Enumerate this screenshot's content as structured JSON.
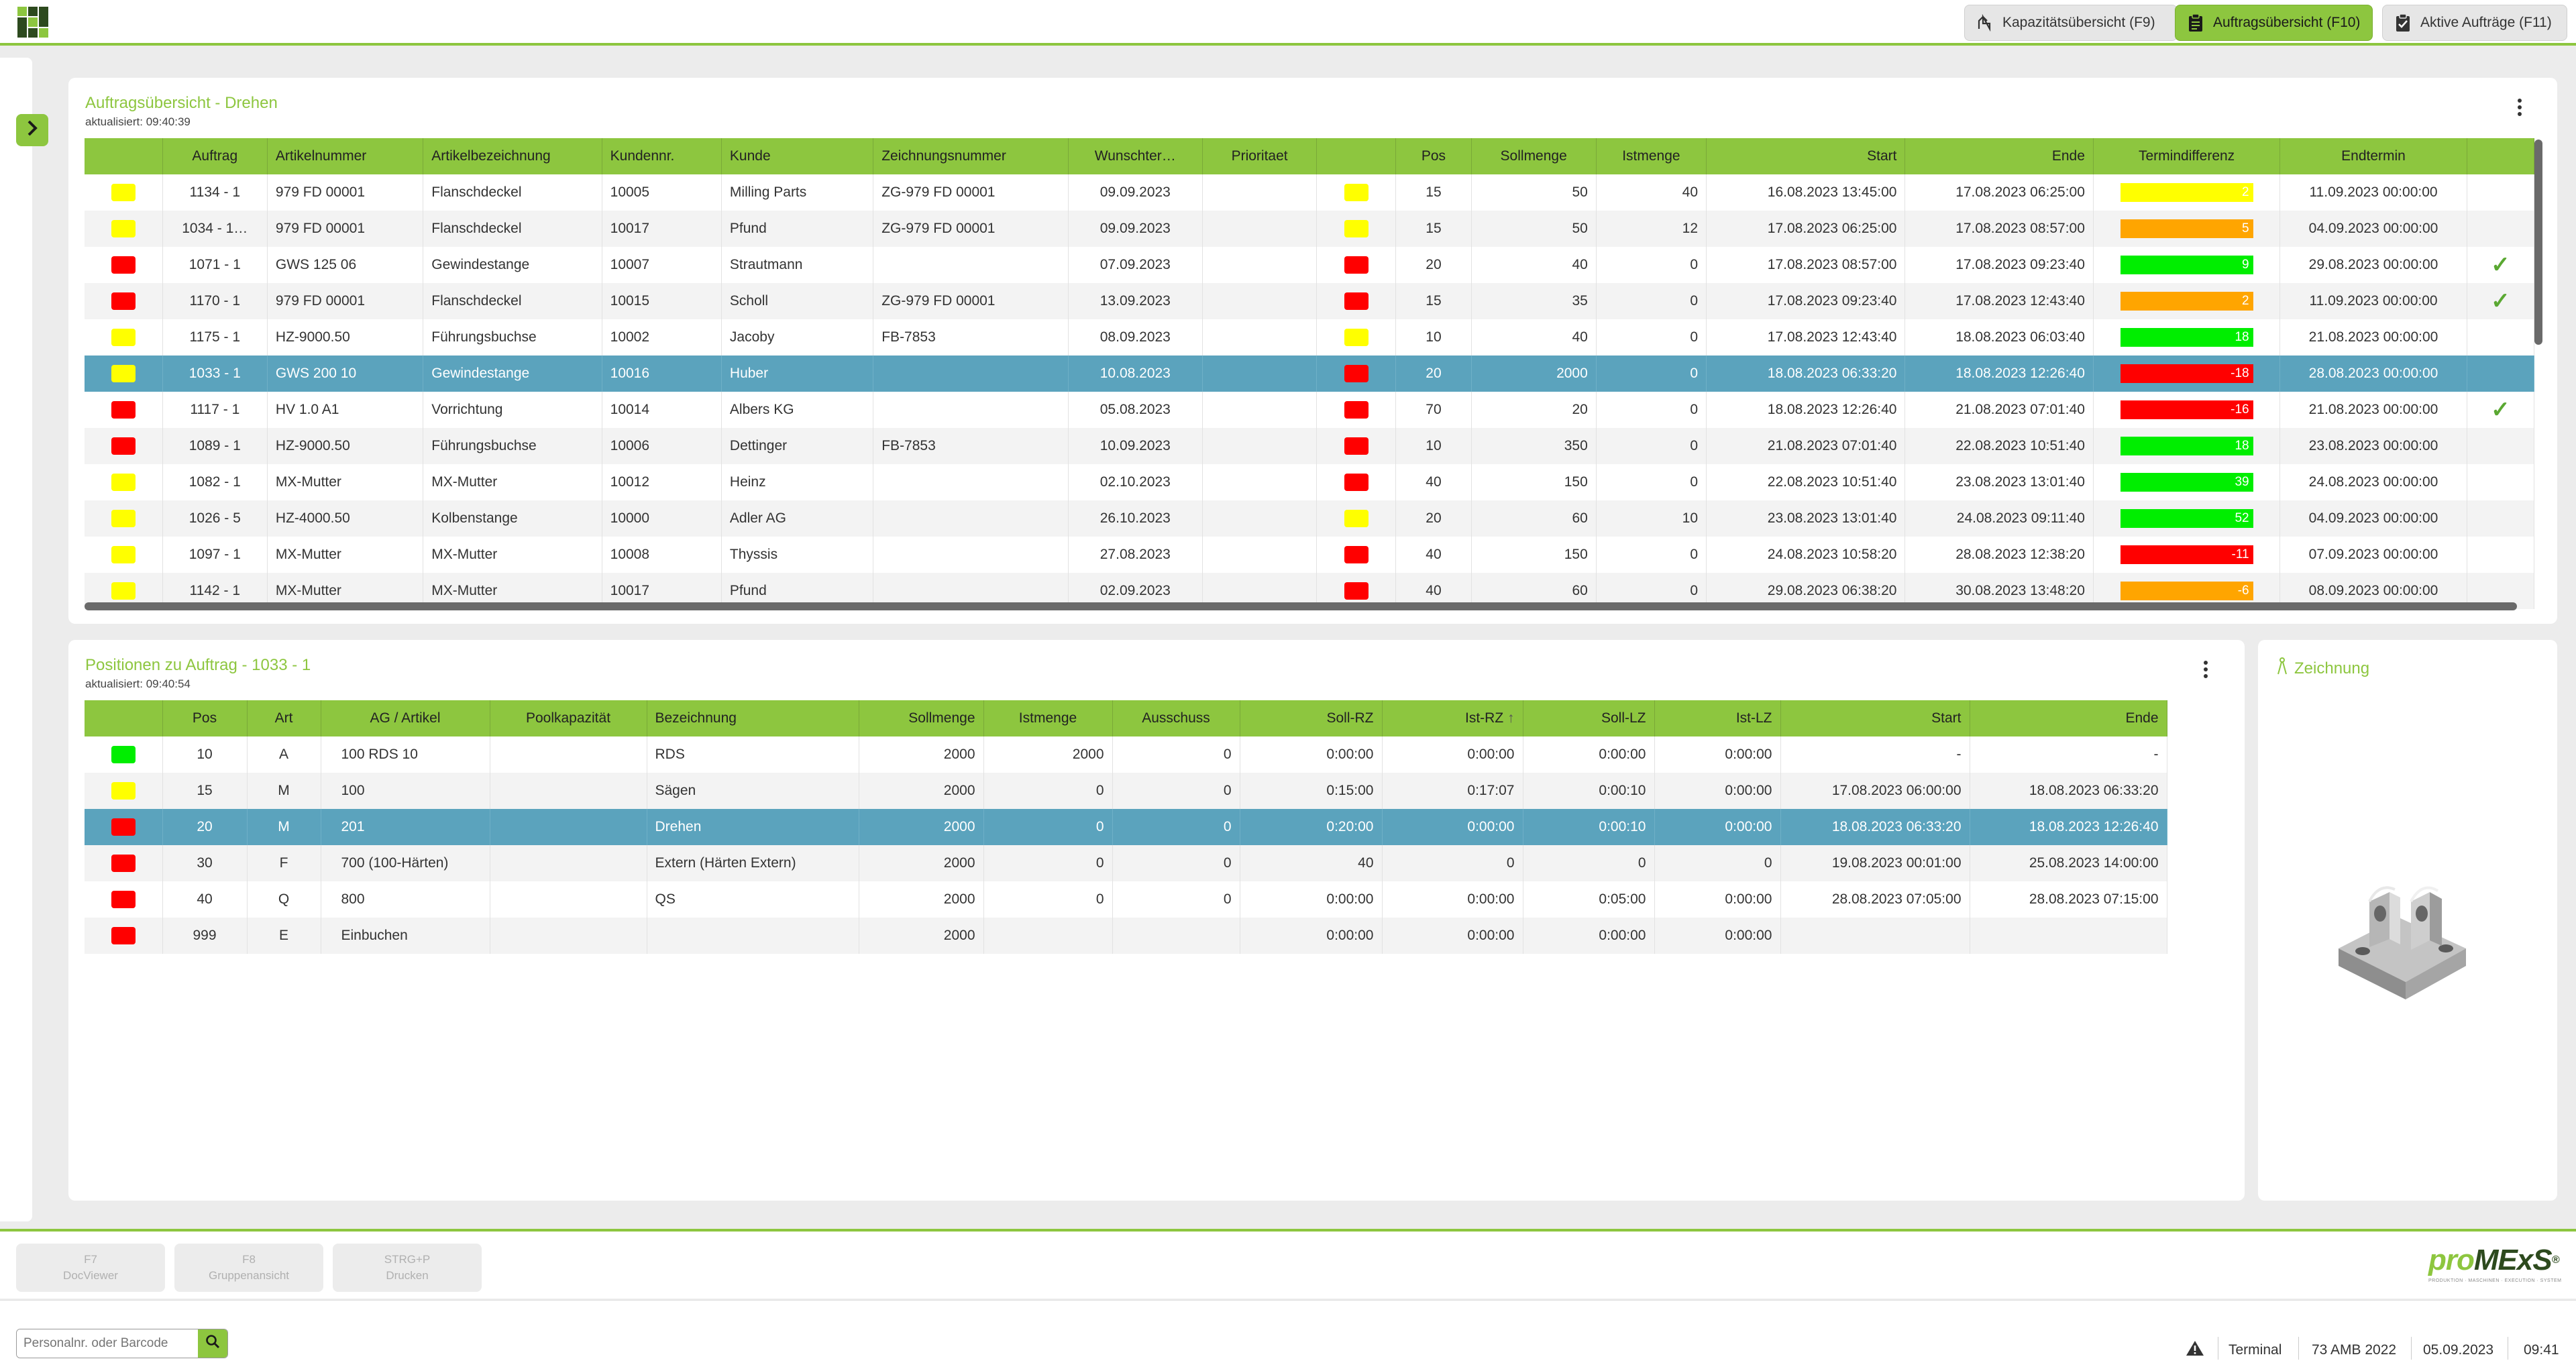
{
  "header": {
    "buttons": [
      {
        "label": "Kapazitätsübersicht (F9)",
        "icon": "capacity-gauge-icon"
      },
      {
        "label": "Auftragsübersicht (F10)",
        "icon": "clipboard-icon",
        "active": true
      },
      {
        "label": "Aktive Aufträge (F11)",
        "icon": "checked-clipboard-icon"
      }
    ]
  },
  "orders": {
    "title": "Auftragsübersicht - Drehen",
    "updated": "aktualisiert: 09:40:39",
    "columns": [
      "",
      "Auftrag",
      "Artikelnummer",
      "Artikelbezeichnung",
      "Kundennr.",
      "Kunde",
      "Zeichnungsnummer",
      "Wunschter…",
      "Prioritaet",
      "",
      "Pos",
      "Sollmenge",
      "Istmenge",
      "Start",
      "Ende",
      "Termindifferenz",
      "Endtermin",
      ""
    ],
    "rows": [
      {
        "s1": "yellow",
        "auftrag": "1134 - 1",
        "artnr": "979 FD 00001",
        "artbez": "Flanschdeckel",
        "kdnr": "10005",
        "kunde": "Milling Parts",
        "zeich": "ZG-979 FD 00001",
        "wunsch": "09.09.2023",
        "prio": "",
        "s2": "yellow",
        "pos": "15",
        "soll": "50",
        "ist": "40",
        "start": "16.08.2023 13:45:00",
        "ende": "17.08.2023 06:25:00",
        "diff": "2",
        "dc": "yellow",
        "endt": "11.09.2023 00:00:00",
        "ok": false
      },
      {
        "s1": "yellow",
        "auftrag": "1034 - 1…",
        "artnr": "979 FD 00001",
        "artbez": "Flanschdeckel",
        "kdnr": "10017",
        "kunde": "Pfund",
        "zeich": "ZG-979 FD 00001",
        "wunsch": "09.09.2023",
        "prio": "",
        "s2": "yellow",
        "pos": "15",
        "soll": "50",
        "ist": "12",
        "start": "17.08.2023 06:25:00",
        "ende": "17.08.2023 08:57:00",
        "diff": "5",
        "dc": "orange",
        "endt": "04.09.2023 00:00:00",
        "ok": false
      },
      {
        "s1": "red",
        "auftrag": "1071 - 1",
        "artnr": "GWS 125 06",
        "artbez": "Gewindestange",
        "kdnr": "10007",
        "kunde": "Strautmann",
        "zeich": "",
        "wunsch": "07.09.2023",
        "prio": "",
        "s2": "red",
        "pos": "20",
        "soll": "40",
        "ist": "0",
        "start": "17.08.2023 08:57:00",
        "ende": "17.08.2023 09:23:40",
        "diff": "9",
        "dc": "green",
        "endt": "29.08.2023 00:00:00",
        "ok": true
      },
      {
        "s1": "red",
        "auftrag": "1170 - 1",
        "artnr": "979 FD 00001",
        "artbez": "Flanschdeckel",
        "kdnr": "10015",
        "kunde": "Scholl",
        "zeich": "ZG-979 FD 00001",
        "wunsch": "13.09.2023",
        "prio": "",
        "s2": "red",
        "pos": "15",
        "soll": "35",
        "ist": "0",
        "start": "17.08.2023 09:23:40",
        "ende": "17.08.2023 12:43:40",
        "diff": "2",
        "dc": "orange",
        "endt": "11.09.2023 00:00:00",
        "ok": true
      },
      {
        "s1": "yellow",
        "auftrag": "1175 - 1",
        "artnr": "HZ-9000.50",
        "artbez": "Führungsbuchse",
        "kdnr": "10002",
        "kunde": "Jacoby",
        "zeich": "FB-7853",
        "wunsch": "08.09.2023",
        "prio": "",
        "s2": "yellow",
        "pos": "10",
        "soll": "40",
        "ist": "0",
        "start": "17.08.2023 12:43:40",
        "ende": "18.08.2023 06:03:40",
        "diff": "18",
        "dc": "green",
        "endt": "21.08.2023 00:00:00",
        "ok": false
      },
      {
        "s1": "yellow",
        "auftrag": "1033 - 1",
        "artnr": "GWS 200 10",
        "artbez": "Gewindestange",
        "kdnr": "10016",
        "kunde": "Huber",
        "zeich": "",
        "wunsch": "10.08.2023",
        "prio": "",
        "s2": "red",
        "pos": "20",
        "soll": "2000",
        "ist": "0",
        "start": "18.08.2023 06:33:20",
        "ende": "18.08.2023 12:26:40",
        "diff": "-18",
        "dc": "red",
        "endt": "28.08.2023 00:00:00",
        "ok": false,
        "selected": true
      },
      {
        "s1": "red",
        "auftrag": "1117 - 1",
        "artnr": "HV 1.0 A1",
        "artbez": "Vorrichtung",
        "kdnr": "10014",
        "kunde": "Albers KG",
        "zeich": "",
        "wunsch": "05.08.2023",
        "prio": "",
        "s2": "red",
        "pos": "70",
        "soll": "20",
        "ist": "0",
        "start": "18.08.2023 12:26:40",
        "ende": "21.08.2023 07:01:40",
        "diff": "-16",
        "dc": "red",
        "endt": "21.08.2023 00:00:00",
        "ok": true
      },
      {
        "s1": "red",
        "auftrag": "1089 - 1",
        "artnr": "HZ-9000.50",
        "artbez": "Führungsbuchse",
        "kdnr": "10006",
        "kunde": "Dettinger",
        "zeich": "FB-7853",
        "wunsch": "10.09.2023",
        "prio": "",
        "s2": "red",
        "pos": "10",
        "soll": "350",
        "ist": "0",
        "start": "21.08.2023 07:01:40",
        "ende": "22.08.2023 10:51:40",
        "diff": "18",
        "dc": "green",
        "endt": "23.08.2023 00:00:00",
        "ok": false
      },
      {
        "s1": "yellow",
        "auftrag": "1082 - 1",
        "artnr": "MX-Mutter",
        "artbez": "MX-Mutter",
        "kdnr": "10012",
        "kunde": "Heinz",
        "zeich": "",
        "wunsch": "02.10.2023",
        "prio": "",
        "s2": "red",
        "pos": "40",
        "soll": "150",
        "ist": "0",
        "start": "22.08.2023 10:51:40",
        "ende": "23.08.2023 13:01:40",
        "diff": "39",
        "dc": "green",
        "endt": "24.08.2023 00:00:00",
        "ok": false
      },
      {
        "s1": "yellow",
        "auftrag": "1026 - 5",
        "artnr": "HZ-4000.50",
        "artbez": "Kolbenstange",
        "kdnr": "10000",
        "kunde": "Adler AG",
        "zeich": "",
        "wunsch": "26.10.2023",
        "prio": "",
        "s2": "yellow",
        "pos": "20",
        "soll": "60",
        "ist": "10",
        "start": "23.08.2023 13:01:40",
        "ende": "24.08.2023 09:11:40",
        "diff": "52",
        "dc": "green",
        "endt": "04.09.2023 00:00:00",
        "ok": false
      },
      {
        "s1": "yellow",
        "auftrag": "1097 - 1",
        "artnr": "MX-Mutter",
        "artbez": "MX-Mutter",
        "kdnr": "10008",
        "kunde": "Thyssis",
        "zeich": "",
        "wunsch": "27.08.2023",
        "prio": "",
        "s2": "red",
        "pos": "40",
        "soll": "150",
        "ist": "0",
        "start": "24.08.2023 10:58:20",
        "ende": "28.08.2023 12:38:20",
        "diff": "-11",
        "dc": "red",
        "endt": "07.09.2023 00:00:00",
        "ok": false
      },
      {
        "s1": "yellow",
        "auftrag": "1142 - 1",
        "artnr": "MX-Mutter",
        "artbez": "MX-Mutter",
        "kdnr": "10017",
        "kunde": "Pfund",
        "zeich": "",
        "wunsch": "02.09.2023",
        "prio": "",
        "s2": "red",
        "pos": "40",
        "soll": "60",
        "ist": "0",
        "start": "29.08.2023 06:38:20",
        "ende": "30.08.2023 13:48:20",
        "diff": "-6",
        "dc": "orange",
        "endt": "08.09.2023 00:00:00",
        "ok": false
      }
    ]
  },
  "positions": {
    "title": "Positionen zu Auftrag - 1033 - 1",
    "updated": "aktualisiert: 09:40:54",
    "columns": [
      "",
      "Pos",
      "Art",
      "AG / Artikel",
      "Poolkapazität",
      "Bezeichnung",
      "Sollmenge",
      "Istmenge",
      "Ausschuss",
      "Soll-RZ",
      "Ist-RZ",
      "Soll-LZ",
      "Ist-LZ",
      "Start",
      "Ende"
    ],
    "sorted_column": "Ist-RZ",
    "rows": [
      {
        "s": "green",
        "pos": "10",
        "art": "A",
        "ag": "100 RDS 10",
        "pool": "",
        "bez": "RDS",
        "soll": "2000",
        "ist": "2000",
        "aus": "0",
        "sollrz": "0:00:00",
        "istrz": "0:00:00",
        "solllz": "0:00:00",
        "istlz": "0:00:00",
        "start": "-",
        "ende": "-"
      },
      {
        "s": "yellow",
        "pos": "15",
        "art": "M",
        "ag": "100",
        "pool": "",
        "bez": "Sägen",
        "soll": "2000",
        "ist": "0",
        "aus": "0",
        "sollrz": "0:15:00",
        "istrz": "0:17:07",
        "solllz": "0:00:10",
        "istlz": "0:00:00",
        "start": "17.08.2023 06:00:00",
        "ende": "18.08.2023 06:33:20"
      },
      {
        "s": "red",
        "pos": "20",
        "art": "M",
        "ag": "201",
        "pool": "",
        "bez": "Drehen",
        "soll": "2000",
        "ist": "0",
        "aus": "0",
        "sollrz": "0:20:00",
        "istrz": "0:00:00",
        "solllz": "0:00:10",
        "istlz": "0:00:00",
        "start": "18.08.2023 06:33:20",
        "ende": "18.08.2023 12:26:40",
        "selected": true
      },
      {
        "s": "red",
        "pos": "30",
        "art": "F",
        "ag": "700 (100-Härten)",
        "pool": "",
        "bez": "Extern (Härten Extern)",
        "soll": "2000",
        "ist": "0",
        "aus": "0",
        "sollrz": "40",
        "istrz": "0",
        "solllz": "0",
        "istlz": "0",
        "start": "19.08.2023 00:01:00",
        "ende": "25.08.2023 14:00:00"
      },
      {
        "s": "red",
        "pos": "40",
        "art": "Q",
        "ag": "800",
        "pool": "",
        "bez": "QS",
        "soll": "2000",
        "ist": "0",
        "aus": "0",
        "sollrz": "0:00:00",
        "istrz": "0:00:00",
        "solllz": "0:05:00",
        "istlz": "0:00:00",
        "start": "28.08.2023 07:05:00",
        "ende": "28.08.2023 07:15:00"
      },
      {
        "s": "red",
        "pos": "999",
        "art": "E",
        "ag": "Einbuchen",
        "pool": "",
        "bez": "",
        "soll": "2000",
        "ist": "",
        "aus": "",
        "sollrz": "0:00:00",
        "istrz": "0:00:00",
        "solllz": "0:00:00",
        "istlz": "0:00:00",
        "start": "",
        "ende": ""
      }
    ]
  },
  "drawing": {
    "title": "Zeichnung"
  },
  "fkeys": [
    {
      "key": "F7",
      "label": "DocViewer"
    },
    {
      "key": "F8",
      "label": "Gruppenansicht"
    },
    {
      "key": "STRG+P",
      "label": "Drucken"
    }
  ],
  "brand": {
    "main": "proMExS",
    "tagline": "PRODUKTION · MASCHINEN · EXECUTION · SYSTEM"
  },
  "search": {
    "placeholder": "Personalnr. oder Barcode"
  },
  "status": {
    "terminal_label": "Terminal",
    "terminal_value": "73 AMB 2022",
    "date": "05.09.2023",
    "time": "09:41"
  },
  "colors": {
    "accent": "#8dc63f",
    "selected": "#5ba3bd",
    "red": "#ff0000",
    "yellow": "#ffff00",
    "green": "#00ee00",
    "orange": "#ffa500"
  }
}
